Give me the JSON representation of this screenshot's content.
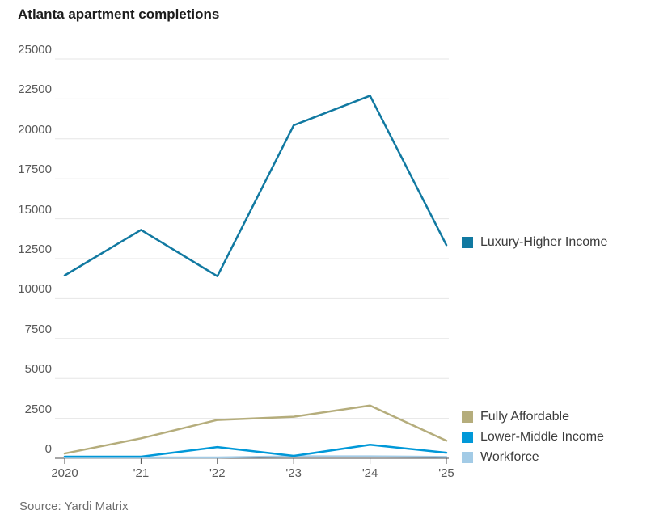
{
  "chart_data": {
    "type": "line",
    "title": "Atlanta apartment completions",
    "source": "Source: Yardi Matrix",
    "x": [
      "2020",
      "'21",
      "'22",
      "'23",
      "'24",
      "'25"
    ],
    "series": [
      {
        "name": "Luxury-Higher Income",
        "color": "#1179a1",
        "values": [
          11450,
          14300,
          11400,
          20850,
          22700,
          13350
        ]
      },
      {
        "name": "Fully Affordable",
        "color": "#b5ad7c",
        "values": [
          300,
          1250,
          2400,
          2600,
          3300,
          1100
        ]
      },
      {
        "name": "Lower-Middle Income",
        "color": "#0098d8",
        "values": [
          100,
          100,
          700,
          150,
          850,
          350
        ]
      },
      {
        "name": "Workforce",
        "color": "#a3cbe6",
        "values": [
          50,
          50,
          50,
          120,
          120,
          80
        ]
      }
    ],
    "ylim": [
      0,
      25000
    ],
    "ytick_step": 2500,
    "ytick_labels": [
      "0",
      "2500",
      "5000",
      "7500",
      "10000",
      "12500",
      "15000",
      "17500",
      "20000",
      "22500",
      "25000"
    ],
    "grid": true,
    "legend_position": "right",
    "colors": {
      "gridline": "#e6e6e6",
      "axis": "#4d4d4d",
      "axis_label": "#595959",
      "title": "#1c1c1c",
      "legend_text": "#3b3b3b",
      "source_text": "#6e6e6e"
    }
  }
}
